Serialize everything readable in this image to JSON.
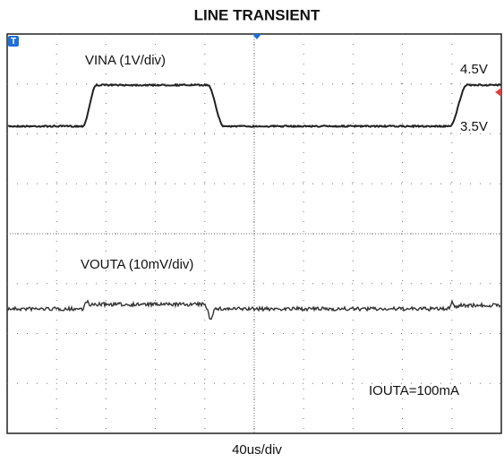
{
  "title": "LINE TRANSIENT",
  "annotations": {
    "vin_label": "VINA (1V/div)",
    "vin_high": "4.5V",
    "vin_low": "3.5V",
    "vout_label": "VOUTA (10mV/div)",
    "load": "IOUTA=100mA"
  },
  "footer": "40us/div"
}
